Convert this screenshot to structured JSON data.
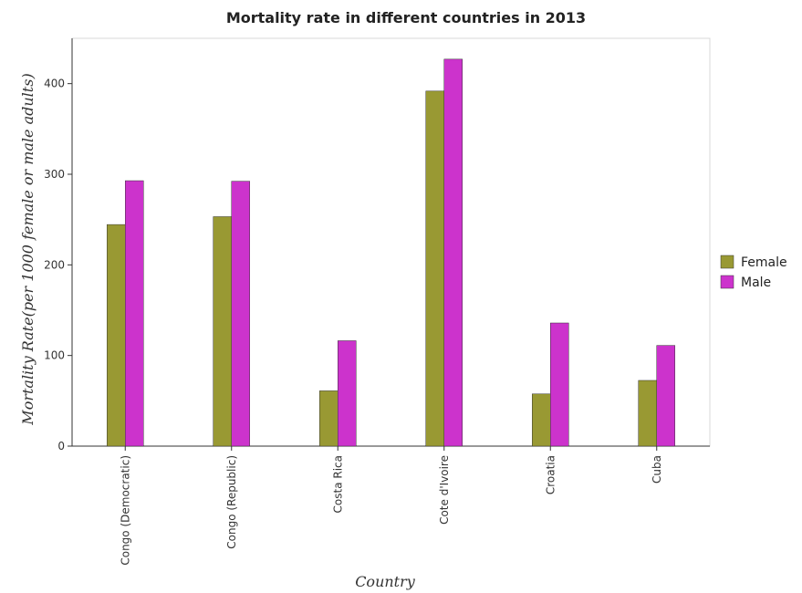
{
  "chart_data": {
    "type": "bar",
    "title": "Mortality rate in different countries in 2013",
    "xlabel": "Country",
    "ylabel": "Mortality Rate(per 1000 female or male adults)",
    "categories": [
      "Congo (Democratic)",
      "Congo (Republic)",
      "Costa Rica",
      "Cote d'Ivoire",
      "Croatia",
      "Cuba"
    ],
    "series": [
      {
        "name": "Female",
        "color": "#999933",
        "values": [
          244.5,
          253.2,
          61.0,
          391.8,
          57.6,
          72.5
        ]
      },
      {
        "name": "Male",
        "color": "#CC33CC",
        "values": [
          292.9,
          292.3,
          116.3,
          427.0,
          135.9,
          111.1
        ]
      }
    ],
    "ylim": [
      0,
      450
    ],
    "yticks": [
      0,
      100,
      200,
      300,
      400
    ],
    "grid": false,
    "legend_position": "right"
  }
}
